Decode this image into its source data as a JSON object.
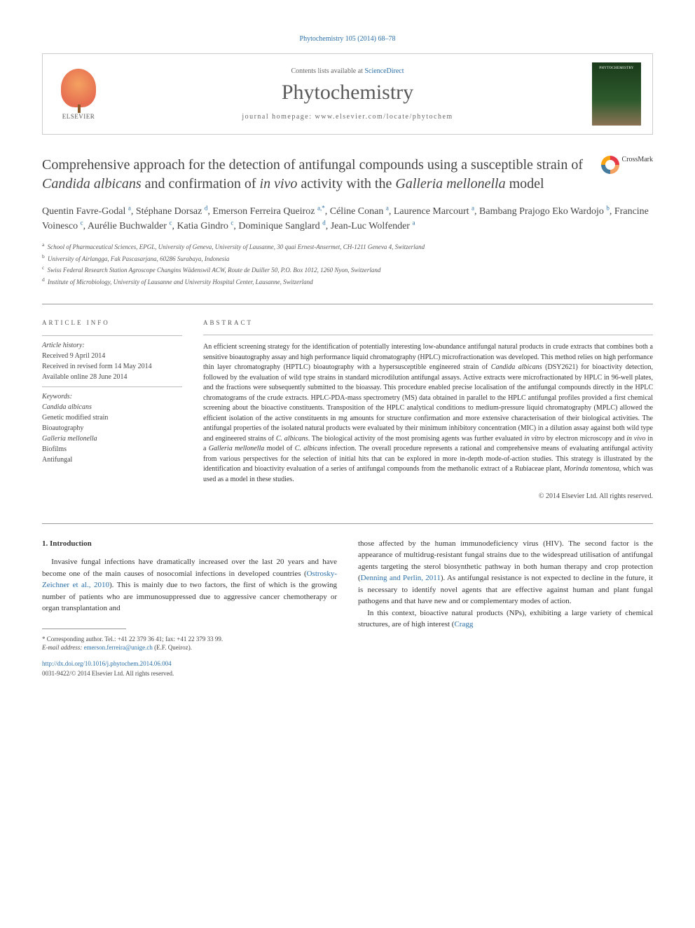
{
  "citation": "Phytochemistry 105 (2014) 68–78",
  "header": {
    "contents_prefix": "Contents lists available at ",
    "contents_link": "ScienceDirect",
    "journal": "Phytochemistry",
    "homepage_prefix": "journal homepage: ",
    "homepage_url": "www.elsevier.com/locate/phytochem",
    "publisher": "ELSEVIER"
  },
  "crossmark": "CrossMark",
  "title": {
    "part1": "Comprehensive approach for the detection of antifungal compounds using a susceptible strain of ",
    "em1": "Candida albicans",
    "part2": " and confirmation of ",
    "em2": "in vivo",
    "part3": " activity with the ",
    "em3": "Galleria mellonella",
    "part4": " model"
  },
  "authors": [
    {
      "name": "Quentin Favre-Godal",
      "affil": "a"
    },
    {
      "name": "Stéphane Dorsaz",
      "affil": "d"
    },
    {
      "name": "Emerson Ferreira Queiroz",
      "affil": "a,*"
    },
    {
      "name": "Céline Conan",
      "affil": "a"
    },
    {
      "name": "Laurence Marcourt",
      "affil": "a"
    },
    {
      "name": "Bambang Prajogo Eko Wardojo",
      "affil": "b"
    },
    {
      "name": "Francine Voinesco",
      "affil": "c"
    },
    {
      "name": "Aurélie Buchwalder",
      "affil": "c"
    },
    {
      "name": "Katia Gindro",
      "affil": "c"
    },
    {
      "name": "Dominique Sanglard",
      "affil": "d"
    },
    {
      "name": "Jean-Luc Wolfender",
      "affil": "a"
    }
  ],
  "affiliations": {
    "a": "School of Pharmaceutical Sciences, EPGL, University of Geneva, University of Lausanne, 30 quai Ernest-Ansermet, CH-1211 Geneva 4, Switzerland",
    "b": "University of Airlangga, Fak Pascasarjana, 60286 Surabaya, Indonesia",
    "c": "Swiss Federal Research Station Agroscope Changins Wädenswil ACW, Route de Duiller 50, P.O. Box 1012, 1260 Nyon, Switzerland",
    "d": "Institute of Microbiology, University of Lausanne and University Hospital Center, Lausanne, Switzerland"
  },
  "article_info": {
    "heading": "ARTICLE INFO",
    "history_label": "Article history:",
    "received": "Received 9 April 2014",
    "revised": "Received in revised form 14 May 2014",
    "online": "Available online 28 June 2014",
    "keywords_label": "Keywords:",
    "keywords": [
      "Candida albicans",
      "Genetic modified strain",
      "Bioautography",
      "Galleria mellonella",
      "Biofilms",
      "Antifungal"
    ]
  },
  "abstract": {
    "heading": "ABSTRACT",
    "text": "An efficient screening strategy for the identification of potentially interesting low-abundance antifungal natural products in crude extracts that combines both a sensitive bioautography assay and high performance liquid chromatography (HPLC) microfractionation was developed. This method relies on high performance thin layer chromatography (HPTLC) bioautography with a hypersusceptible engineered strain of Candida albicans (DSY2621) for bioactivity detection, followed by the evaluation of wild type strains in standard microdilution antifungal assays. Active extracts were microfractionated by HPLC in 96-well plates, and the fractions were subsequently submitted to the bioassay. This procedure enabled precise localisation of the antifungal compounds directly in the HPLC chromatograms of the crude extracts. HPLC-PDA-mass spectrometry (MS) data obtained in parallel to the HPLC antifungal profiles provided a first chemical screening about the bioactive constituents. Transposition of the HPLC analytical conditions to medium-pressure liquid chromatography (MPLC) allowed the efficient isolation of the active constituents in mg amounts for structure confirmation and more extensive characterisation of their biological activities. The antifungal properties of the isolated natural products were evaluated by their minimum inhibitory concentration (MIC) in a dilution assay against both wild type and engineered strains of C. albicans. The biological activity of the most promising agents was further evaluated in vitro by electron microscopy and in vivo in a Galleria mellonella model of C. albicans infection. The overall procedure represents a rational and comprehensive means of evaluating antifungal activity from various perspectives for the selection of initial hits that can be explored in more in-depth mode-of-action studies. This strategy is illustrated by the identification and bioactivity evaluation of a series of antifungal compounds from the methanolic extract of a Rubiaceae plant, Morinda tomentosa, which was used as a model in these studies.",
    "copyright": "© 2014 Elsevier Ltd. All rights reserved."
  },
  "body": {
    "section_heading": "1. Introduction",
    "col1_p1a": "Invasive fungal infections have dramatically increased over the last 20 years and have become one of the main causes of nosocomial infections in developed countries (",
    "col1_link1": "Ostrosky-Zeichner et al., 2010",
    "col1_p1b": "). This is mainly due to two factors, the first of which is the growing number of patients who are immunosuppressed due to aggressive cancer chemotherapy or organ transplantation and",
    "col2_p1a": "those affected by the human immunodeficiency virus (HIV). The second factor is the appearance of multidrug-resistant fungal strains due to the widespread utilisation of antifungal agents targeting the sterol biosynthetic pathway in both human therapy and crop protection (",
    "col2_link1": "Denning and Perlin, 2011",
    "col2_p1b": "). As antifungal resistance is not expected to decline in the future, it is necessary to identify novel agents that are effective against human and plant fungal pathogens and that have new and or complementary modes of action.",
    "col2_p2a": "In this context, bioactive natural products (NPs), exhibiting a large variety of chemical structures, are of high interest (",
    "col2_link2": "Cragg"
  },
  "footer": {
    "corresp_label": "* Corresponding author. Tel.: +41 22 379 36 41; fax: +41 22 379 33 99.",
    "email_label": "E-mail address:",
    "email": "emerson.ferreira@unige.ch",
    "email_person": "(E.F. Queiroz).",
    "doi_url": "http://dx.doi.org/10.1016/j.phytochem.2014.06.004",
    "issn_line": "0031-9422/© 2014 Elsevier Ltd. All rights reserved."
  },
  "colors": {
    "link": "#2b6fa8",
    "text": "#333333",
    "heading_gray": "#555555",
    "border": "#999999"
  }
}
